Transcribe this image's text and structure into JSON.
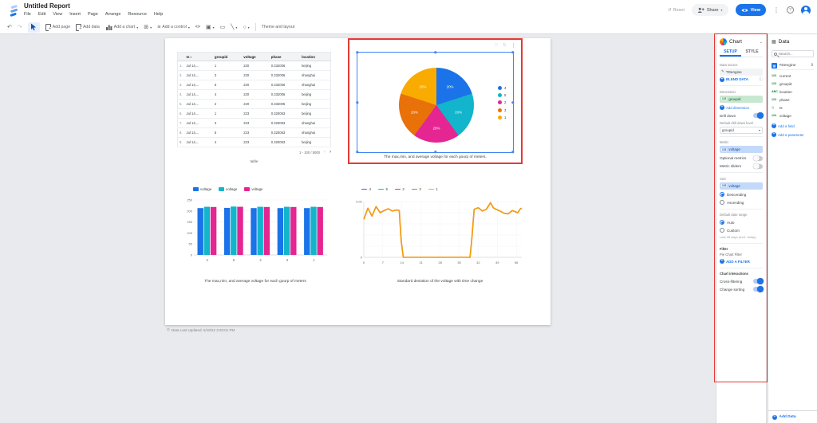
{
  "header": {
    "title": "Untitled Report",
    "menus": [
      "File",
      "Edit",
      "View",
      "Insert",
      "Page",
      "Arrange",
      "Resource",
      "Help"
    ],
    "actions": {
      "reset": "Reset",
      "share": "Share",
      "view": "View"
    }
  },
  "toolbar": {
    "add_page": "Add page",
    "add_data": "Add data",
    "add_chart": "Add a chart",
    "add_control": "Add a control",
    "embed": "<>",
    "theme_layout": "Theme and layout"
  },
  "canvas": {
    "updated_note": "Data Last Updated: 5/18/22 3:20:01 PM"
  },
  "colors": {
    "accent_blue": "#1a73e8",
    "selection_red": "#e53935",
    "series": [
      "#1a73e8",
      "#12b5cb",
      "#e52592",
      "#e8710a",
      "#f9ab00"
    ]
  },
  "chart_data": [
    {
      "type": "pie",
      "title": "The max,min, and average voltage for each gourp of meters.",
      "labels": [
        "4",
        "5",
        "2",
        "3",
        "1"
      ],
      "values": [
        20,
        20,
        20,
        20,
        20
      ],
      "value_labels": [
        "20%",
        "20%",
        "20%",
        "20%",
        "20%"
      ],
      "colors": [
        "#1a73e8",
        "#12b5cb",
        "#e52592",
        "#e8710a",
        "#f9ab00"
      ],
      "legend_position": "right"
    },
    {
      "type": "bar",
      "title": "The max,min, and average voltage for each gourp of meters",
      "categories": [
        "4",
        "5",
        "2",
        "3",
        "1"
      ],
      "series": [
        {
          "name": "voltage",
          "color": "#1a73e8",
          "values": [
            213,
            214,
            213,
            213,
            213
          ]
        },
        {
          "name": "voltage",
          "color": "#12b5cb",
          "values": [
            219,
            220,
            219,
            219,
            219
          ]
        },
        {
          "name": "voltage",
          "color": "#e52592",
          "values": [
            218,
            219,
            218,
            218,
            218
          ]
        }
      ],
      "ylim": [
        0,
        250
      ],
      "yticks": [
        0,
        50,
        100,
        150,
        200,
        250
      ],
      "grid": true,
      "legend_position": "top"
    },
    {
      "type": "line",
      "title": "Standard deviation of the voltage with time change",
      "x": [
        0,
        1.5,
        3,
        4.5,
        6,
        7.5,
        9,
        10.5,
        12,
        13,
        13.7,
        14.5,
        39,
        39.6,
        40.5,
        42,
        43.5,
        45,
        46.5,
        47.5,
        48.5,
        50,
        51.5,
        53,
        54.5,
        55.5,
        56.5,
        57.5,
        58
      ],
      "xticks": [
        0,
        7,
        14,
        21,
        28,
        35,
        42,
        49,
        56
      ],
      "ylim": [
        0,
        0.01
      ],
      "yticks": [
        "0",
        "0.01"
      ],
      "grid": true,
      "legend_position": "top",
      "series": [
        {
          "name": "4",
          "color": "#1a73e8",
          "values": null
        },
        {
          "name": "5",
          "color": "#12b5cb",
          "values": null
        },
        {
          "name": "2",
          "color": "#e52592",
          "values": null
        },
        {
          "name": "3",
          "color": "#e8710a",
          "values": [
            0.0068,
            0.0088,
            0.0074,
            0.0091,
            0.008,
            0.0084,
            0.0087,
            0.0083,
            0.0085,
            0.0084,
            0.003,
            0,
            0,
            0.003,
            0.0086,
            0.0089,
            0.0083,
            0.0086,
            0.0098,
            0.0089,
            0.0086,
            0.0083,
            0.0079,
            0.0078,
            0.0084,
            0.0082,
            0.008,
            0.0087,
            0.0088
          ]
        },
        {
          "name": "1",
          "color": "#f9ab00",
          "values": [
            0.0068,
            0.0088,
            0.0074,
            0.0091,
            0.008,
            0.0084,
            0.0087,
            0.0083,
            0.0085,
            0.0084,
            0.003,
            0,
            0,
            0.003,
            0.0086,
            0.0089,
            0.0083,
            0.0086,
            0.0098,
            0.0089,
            0.0086,
            0.0083,
            0.0079,
            0.0078,
            0.0084,
            0.0082,
            0.008,
            0.0087,
            0.0088
          ]
        }
      ]
    },
    {
      "type": "table",
      "caption": "table",
      "columns": [
        "",
        "ts",
        "groupid",
        "voltage",
        "phase",
        "location"
      ],
      "sorted_column": "ts",
      "rows": [
        [
          "1.",
          "Jul 14,...",
          "1",
          "220",
          "0.332006",
          "beijing"
        ],
        [
          "2.",
          "Jul 14,...",
          "3",
          "220",
          "0.332006",
          "shanghai"
        ],
        [
          "3.",
          "Jul 14,...",
          "5",
          "220",
          "0.332006",
          "shanghai"
        ],
        [
          "4.",
          "Jul 14,...",
          "4",
          "220",
          "0.332006",
          "beijing"
        ],
        [
          "5.",
          "Jul 14,...",
          "2",
          "220",
          "0.332006",
          "beijing"
        ],
        [
          "6.",
          "Jul 14,...",
          "1",
          "223",
          "0.320063",
          "beijing"
        ],
        [
          "7.",
          "Jul 14,...",
          "3",
          "223",
          "0.320063",
          "shanghai"
        ],
        [
          "8.",
          "Jul 14,...",
          "5",
          "223",
          "0.320063",
          "shanghai"
        ],
        [
          "9.",
          "Jul 14,...",
          "4",
          "223",
          "0.320063",
          "beijing"
        ]
      ],
      "pagination": "1 - 100 / 5000"
    }
  ],
  "chart_panel": {
    "title": "Chart",
    "tabs": [
      "SETUP",
      "STYLE"
    ],
    "active_tab": "SETUP",
    "data_source_label": "Data source",
    "data_source": "TDengine",
    "blend_label": "BLEND DATA",
    "dimension_label": "Dimension",
    "dimension_chip": {
      "type": "123",
      "name": "groupid"
    },
    "add_dimension_label": "Add dimension",
    "drill_down_label": "Drill down",
    "drill_down_on": true,
    "drill_level_label": "Default drill down level",
    "drill_level_value": "groupid",
    "metric_label": "Metric",
    "metric_chip": {
      "type": "123",
      "name": "voltage"
    },
    "optional_metrics_label": "Optional metrics",
    "optional_metrics_on": false,
    "metric_sliders_label": "Metric sliders",
    "metric_sliders_on": false,
    "sort_label": "Sort",
    "sort_chip": {
      "type": "123",
      "name": "voltage"
    },
    "sort_options": [
      {
        "label": "Descending",
        "selected": true
      },
      {
        "label": "Ascending",
        "selected": false
      }
    ],
    "date_range_label": "Default date range",
    "date_range_options": [
      {
        "label": "Auto",
        "selected": true
      },
      {
        "label": "Custom",
        "selected": false
      }
    ],
    "date_range_hint": "Last 28 days (excl. today)",
    "filter_label": "Filter",
    "filter_sub": "Pie Chart Filter",
    "add_filter_label": "ADD A FILTER",
    "interactions_label": "Chart interactions",
    "interactions": [
      {
        "label": "Cross-filtering",
        "on": true
      },
      {
        "label": "Change sorting",
        "on": true
      }
    ]
  },
  "data_panel": {
    "title": "Data",
    "search_placeholder": "Search...",
    "source": "TDengine",
    "fields": [
      {
        "type": "123",
        "name": "current"
      },
      {
        "type": "123",
        "name": "groupid"
      },
      {
        "type": "ABC",
        "name": "location"
      },
      {
        "type": "123",
        "name": "phase"
      },
      {
        "type": "clock",
        "name": "ts"
      },
      {
        "type": "123",
        "name": "voltage"
      }
    ],
    "add_field_label": "Add a field",
    "add_parameter_label": "Add a parameter",
    "add_data_label": "Add Data"
  }
}
